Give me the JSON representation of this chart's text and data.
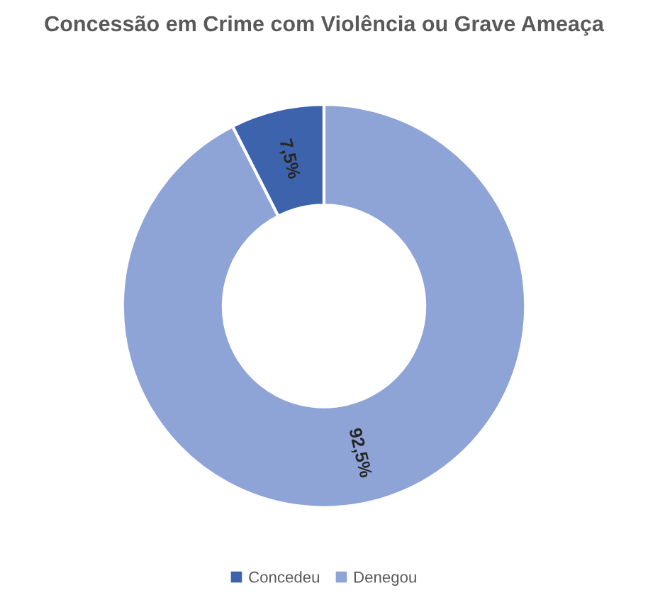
{
  "chart_data": {
    "type": "donut",
    "title": "Concessão em Crime com Violência ou Grave Ameaça",
    "categories": [
      "Concedeu",
      "Denegou"
    ],
    "values": [
      7.5,
      92.5
    ],
    "value_labels": [
      "7,5%",
      "92,5%"
    ],
    "colors": [
      "#3d63ad",
      "#8ea3d6"
    ],
    "legend": "bottom"
  }
}
